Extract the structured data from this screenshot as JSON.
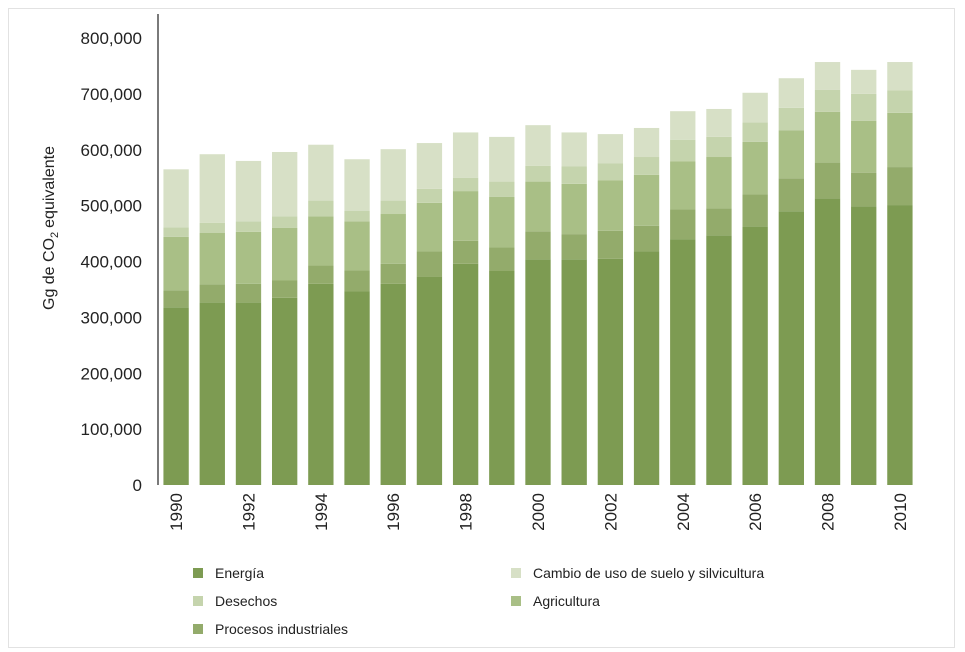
{
  "chart_data": {
    "type": "bar",
    "stacked": true,
    "title": "",
    "ylabel": "Gg de CO",
    "ylabel_sub": "2",
    "ylabel_suffix": "equivalente",
    "xlabel": "",
    "ylim": [
      0,
      800000
    ],
    "yticks": [
      0,
      100000,
      200000,
      300000,
      400000,
      500000,
      600000,
      700000,
      800000
    ],
    "ytick_labels": [
      "0",
      "100,000",
      "200,000",
      "300,000",
      "400,000",
      "500,000",
      "600,000",
      "700,000",
      "800,000"
    ],
    "categories": [
      "1990",
      "1991",
      "1992",
      "1993",
      "1994",
      "1995",
      "1996",
      "1997",
      "1998",
      "1999",
      "2000",
      "2001",
      "2002",
      "2003",
      "2004",
      "2005",
      "2006",
      "2007",
      "2008",
      "2009",
      "2010"
    ],
    "xtick_labels": [
      "1990",
      "",
      "1992",
      "",
      "1994",
      "",
      "1996",
      "",
      "1998",
      "",
      "2000",
      "",
      "2002",
      "",
      "2004",
      "",
      "2006",
      "",
      "2008",
      "",
      "2010"
    ],
    "grid": false,
    "legend_position": "bottom",
    "series": [
      {
        "name": "Energía",
        "color": "#7d9b52",
        "values": [
          318000,
          327000,
          327000,
          335000,
          360000,
          347000,
          360000,
          373000,
          396000,
          383000,
          404000,
          404000,
          405000,
          418000,
          440000,
          447000,
          463000,
          490000,
          513000,
          499000,
          501000
        ]
      },
      {
        "name": "Procesos industriales",
        "color": "#93ab6b",
        "values": [
          30000,
          32000,
          33000,
          31000,
          33000,
          37000,
          36000,
          45000,
          41000,
          42000,
          50000,
          45000,
          50000,
          46000,
          53000,
          48000,
          57000,
          59000,
          64000,
          60000,
          68000
        ]
      },
      {
        "name": "Agricultura",
        "color": "#a9bf86",
        "values": [
          96000,
          92000,
          93000,
          94000,
          88000,
          88000,
          89000,
          87000,
          89000,
          91000,
          89000,
          90000,
          90000,
          91000,
          86000,
          92000,
          94000,
          86000,
          91000,
          93000,
          97000
        ]
      },
      {
        "name": "Desechos",
        "color": "#c5d4ad",
        "values": [
          17000,
          18000,
          19000,
          21000,
          28000,
          19000,
          24000,
          25000,
          24000,
          27000,
          28000,
          31000,
          31000,
          32000,
          39000,
          36000,
          35000,
          40000,
          39000,
          48000,
          40000
        ]
      },
      {
        "name": "Cambio de uso de suelo y silvicultura",
        "color": "#d7e0c6",
        "values": [
          104000,
          123000,
          108000,
          115000,
          100000,
          92000,
          92000,
          82000,
          81000,
          80000,
          73000,
          61000,
          52000,
          52000,
          51000,
          50000,
          53000,
          53000,
          50000,
          43000,
          51000
        ]
      }
    ],
    "legend_order": [
      "Energía",
      "Cambio de uso de suelo y silvicultura",
      "Desechos",
      "Agricultura",
      "Procesos industriales"
    ]
  }
}
